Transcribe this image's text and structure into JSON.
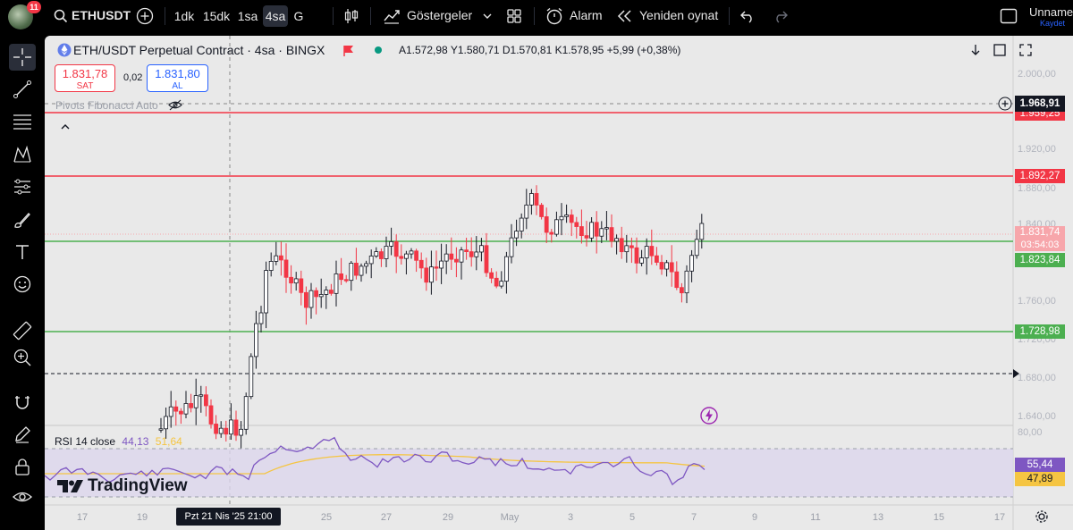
{
  "header": {
    "notification_count": "11",
    "symbol": "ETHUSDT",
    "intervals": [
      {
        "label": "1dk",
        "active": false
      },
      {
        "label": "15dk",
        "active": false
      },
      {
        "label": "1sa",
        "active": false
      },
      {
        "label": "4sa",
        "active": true
      },
      {
        "label": "G",
        "active": false
      }
    ],
    "indicators_label": "Göstergeler",
    "alarm_label": "Alarm",
    "replay_label": "Yeniden oynat",
    "layout_name": "Unname",
    "save_label": "Kaydet"
  },
  "legend": {
    "title": "ETH/USDT Perpetual Contract · 4sa · BINGX",
    "ohlc": "A1.572,98 Y1.580,71 D1.570,81 K1.578,95 +5,99 (+0,38%)",
    "sell_price": "1.831,78",
    "sell_label": "SAT",
    "spread": "0,02",
    "buy_price": "1.831,80",
    "buy_label": "AL",
    "pivots": "Pivots Fibonacci Auto"
  },
  "price_axis": [
    "2.000,00",
    "1.920,00",
    "1.880,00",
    "1.840,00",
    "1.760,00",
    "1.720,00",
    "1.680,00",
    "1.640,00"
  ],
  "price_tags": {
    "crosshair": "1.968,91",
    "r1_hidden": "1.959,25",
    "r2": "1.892,27",
    "last": "1.831,74",
    "countdown": "03:54:03",
    "s1": "1.823,84",
    "s2": "1.728,98"
  },
  "rsi": {
    "label": "RSI 14 close",
    "value_rsi": "44,13",
    "value_ma": "51,64",
    "axis_top": "80,00",
    "tag_rsi": "55,44",
    "tag_ma": "47,89"
  },
  "time_axis": [
    "17",
    "19",
    "25",
    "27",
    "29",
    "May",
    "3",
    "5",
    "7",
    "9",
    "11",
    "13",
    "15",
    "17"
  ],
  "crosshair_date": "Pzt 21 Nis '25   21:00",
  "brand": "TradingView",
  "colors": {
    "red": "#f23645",
    "green": "#4caf50",
    "rsi_line": "#7e57c2",
    "rsi_ma": "#f5c542",
    "background": "#e9e9e9"
  }
}
